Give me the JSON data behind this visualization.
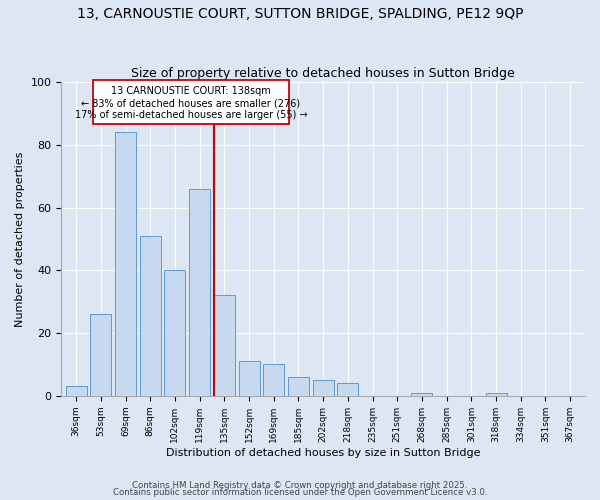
{
  "title": "13, CARNOUSTIE COURT, SUTTON BRIDGE, SPALDING, PE12 9QP",
  "subtitle": "Size of property relative to detached houses in Sutton Bridge",
  "xlabel": "Distribution of detached houses by size in Sutton Bridge",
  "ylabel": "Number of detached properties",
  "bar_labels": [
    "36sqm",
    "53sqm",
    "69sqm",
    "86sqm",
    "102sqm",
    "119sqm",
    "135sqm",
    "152sqm",
    "169sqm",
    "185sqm",
    "202sqm",
    "218sqm",
    "235sqm",
    "251sqm",
    "268sqm",
    "285sqm",
    "301sqm",
    "318sqm",
    "334sqm",
    "351sqm",
    "367sqm"
  ],
  "bar_values": [
    3,
    26,
    84,
    51,
    40,
    66,
    32,
    11,
    10,
    6,
    5,
    4,
    0,
    0,
    1,
    0,
    0,
    1,
    0,
    0,
    0
  ],
  "bar_color": "#c6d9ee",
  "bar_edge_color": "#5b9bd5",
  "vline_color": "#cc0000",
  "vline_index": 6,
  "annotation_title": "13 CARNOUSTIE COURT: 138sqm",
  "annotation_line1": "← 83% of detached houses are smaller (276)",
  "annotation_line2": "17% of semi-detached houses are larger (55) →",
  "annotation_box_color": "#ffffff",
  "annotation_box_edge": "#cc0000",
  "ylim": [
    0,
    100
  ],
  "yticks": [
    0,
    20,
    40,
    60,
    80,
    100
  ],
  "background_color": "#dce7f3",
  "axes_background": "#dce7f3",
  "footer1": "Contains HM Land Registry data © Crown copyright and database right 2025.",
  "footer2": "Contains public sector information licensed under the Open Government Licence v3.0.",
  "title_fontsize": 10,
  "subtitle_fontsize": 9
}
